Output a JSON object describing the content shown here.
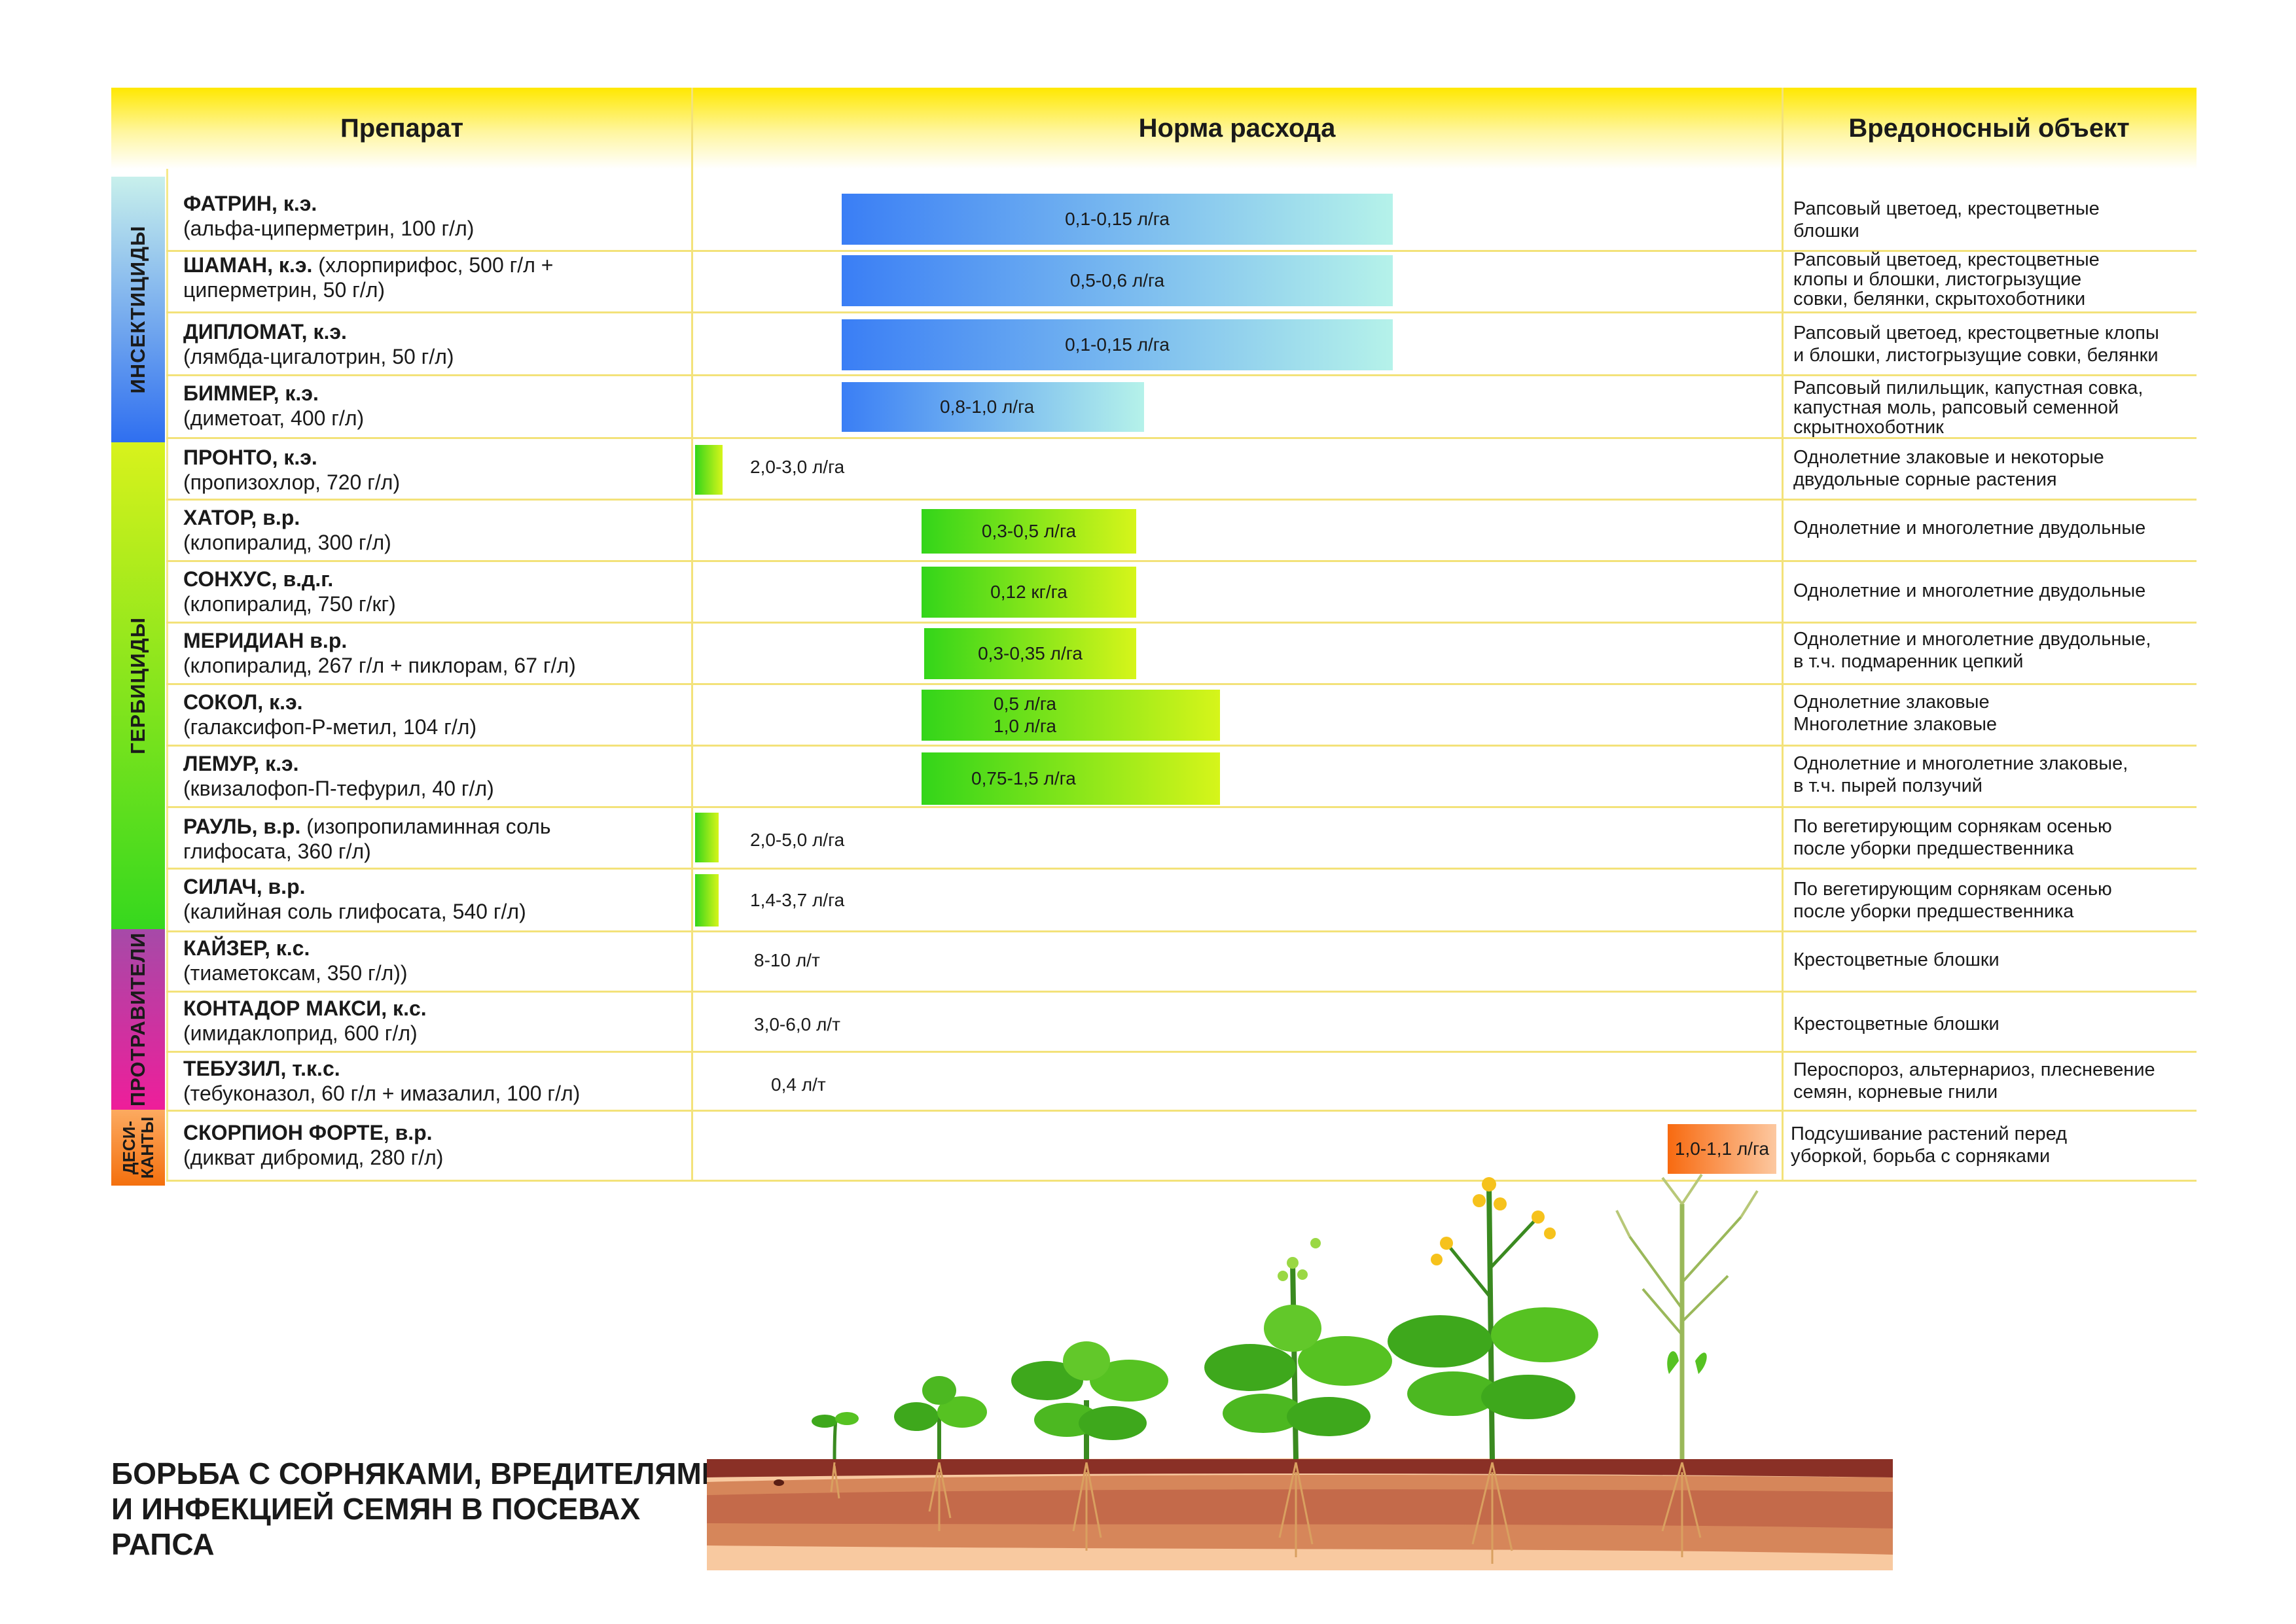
{
  "header": {
    "col_product": "Препарат",
    "col_rate": "Норма расхода",
    "col_target": "Вредоносный объект"
  },
  "categories": {
    "insecticides": "ИНСЕКТИЦИДЫ",
    "herbicides": "ГЕРБИЦИДЫ",
    "seed_treatments": "ПРОТРАВИТЕЛИ",
    "desiccants_line1": "ДЕСИ-",
    "desiccants_line2": "КАНТЫ"
  },
  "category_colors": {
    "insecticides": [
      "#2f6ff0",
      "#c8f0ec"
    ],
    "herbicides": [
      "#d8f21c",
      "#36d81e"
    ],
    "seed_treatments": [
      "#ee1e9a",
      "#a64aa8"
    ],
    "desiccants": [
      "#f4700e",
      "#fcaa60"
    ]
  },
  "rows": [
    {
      "name": "ФАТРИН, к.э.",
      "l1rest": "",
      "l2": "(альфа-циперметрин, 100 г/л)",
      "rate": "0,1-0,15 л/га",
      "rate2": "",
      "target1": "Рапсовый цветоед, крестоцветные",
      "target2": "блошки",
      "target3": ""
    },
    {
      "name": "ШАМАН, к.э.",
      "l1rest": " (хлорпирифос, 500 г/л +",
      "l2": "циперметрин, 50 г/л)",
      "rate": "0,5-0,6 л/га",
      "rate2": "",
      "target1": "Рапсовый цветоед, крестоцветные",
      "target2": "клопы и блошки, листогрызущие",
      "target3": "совки, белянки, скрытохоботники"
    },
    {
      "name": "ДИПЛОМАТ, к.э.",
      "l1rest": "",
      "l2": "(лямбда-цигалотрин, 50 г/л)",
      "rate": "0,1-0,15 л/га",
      "rate2": "",
      "target1": "Рапсовый цветоед, крестоцветные клопы",
      "target2": "и блошки, листогрызущие совки, белянки",
      "target3": ""
    },
    {
      "name": "БИММЕР, к.э.",
      "l1rest": "",
      "l2": "(диметоат, 400 г/л)",
      "rate": "0,8-1,0 л/га",
      "rate2": "",
      "target1": "Рапсовый пилильщик, капустная совка,",
      "target2": "капустная моль, рапсовый семенной",
      "target3": "скрытнохоботник"
    },
    {
      "name": "ПРОНТО, к.э.",
      "l1rest": "",
      "l2": "(пропизохлор, 720 г/л)",
      "rate": "2,0-3,0 л/га",
      "rate2": "",
      "target1": "Однолетние злаковые и некоторые",
      "target2": "двудольные сорные растения",
      "target3": ""
    },
    {
      "name": "ХАТОР, в.р.",
      "l1rest": "",
      "l2": "(клопиралид, 300 г/л)",
      "rate": "0,3-0,5 л/га",
      "rate2": "",
      "target1": "Однолетние и многолетние двудольные",
      "target2": "",
      "target3": ""
    },
    {
      "name": "СОНХУС, в.д.г.",
      "l1rest": "",
      "l2": "(клопиралид, 750 г/кг)",
      "rate": "0,12 кг/га",
      "rate2": "",
      "target1": "Однолетние и многолетние двудольные",
      "target2": "",
      "target3": ""
    },
    {
      "name": "МЕРИДИАН в.р.",
      "l1rest": "",
      "l2": "(клопиралид, 267 г/л + пиклорам, 67 г/л)",
      "rate": "0,3-0,35 л/га",
      "rate2": "",
      "target1": "Однолетние и многолетние двудольные,",
      "target2": "в т.ч. подмаренник цепкий",
      "target3": ""
    },
    {
      "name": "СОКОЛ, к.э.",
      "l1rest": "",
      "l2": "(галаксифоп-Р-метил, 104 г/л)",
      "rate": "0,5 л/га",
      "rate2": "1,0 л/га",
      "target1": "Однолетние злаковые",
      "target2": "Многолетние злаковые",
      "target3": ""
    },
    {
      "name": "ЛЕМУР, к.э.",
      "l1rest": "",
      "l2": "(квизалофоп-П-тефурил, 40 г/л)",
      "rate": "0,75-1,5 л/га",
      "rate2": "",
      "target1": "Однолетние и многолетние злаковые,",
      "target2": "в т.ч. пырей ползучий",
      "target3": ""
    },
    {
      "name": "РАУЛЬ, в.р.",
      "l1rest": " (изопропиламинная соль",
      "l2": "глифосата, 360 г/л)",
      "rate": "2,0-5,0 л/га",
      "rate2": "",
      "target1": "По вегетирующим сорнякам осенью",
      "target2": "после уборки предшественника",
      "target3": ""
    },
    {
      "name": "СИЛАЧ, в.р.",
      "l1rest": "",
      "l2": "(калийная соль глифосата, 540 г/л)",
      "rate": "1,4-3,7 л/га",
      "rate2": "",
      "target1": "По вегетирующим сорнякам осенью",
      "target2": "после уборки предшественника",
      "target3": ""
    },
    {
      "name": "КАЙЗЕР, к.с.",
      "l1rest": "",
      "l2": "(тиаметоксам, 350 г/л))",
      "rate": "8-10 л/т",
      "rate2": "",
      "target1": "Крестоцветные блошки",
      "target2": "",
      "target3": ""
    },
    {
      "name": "КОНТАДОР МАКСИ, к.с.",
      "l1rest": "",
      "l2": "(имидаклоприд, 600 г/л)",
      "rate": "3,0-6,0 л/т",
      "rate2": "",
      "target1": "Крестоцветные блошки",
      "target2": "",
      "target3": ""
    },
    {
      "name": "ТЕБУЗИЛ, т.к.с.",
      "l1rest": "",
      "l2": "(тебуконазол, 60 г/л + имазалил, 100 г/л)",
      "rate": "0,4 л/т",
      "rate2": "",
      "target1": "Пероспороз, альтернариоз, плесневение",
      "target2": "семян, корневые гнили",
      "target3": ""
    },
    {
      "name": "СКОРПИОН ФОРТЕ, в.р.",
      "l1rest": "",
      "l2": "(дикват дибромид, 280 г/л)",
      "rate": "1,0-1,1 л/га",
      "rate2": "",
      "target1": "Подсушивание растений перед",
      "target2": "уборкой, борьба с сорняками",
      "target3": ""
    }
  ],
  "title": {
    "line1": "БОРЬБА С СОРНЯКАМИ, ВРЕДИТЕЛЯМИ",
    "line2": "И ИНФЕКЦИЕЙ СЕМЯН В ПОСЕВАХ",
    "line3": "РАПСА"
  }
}
